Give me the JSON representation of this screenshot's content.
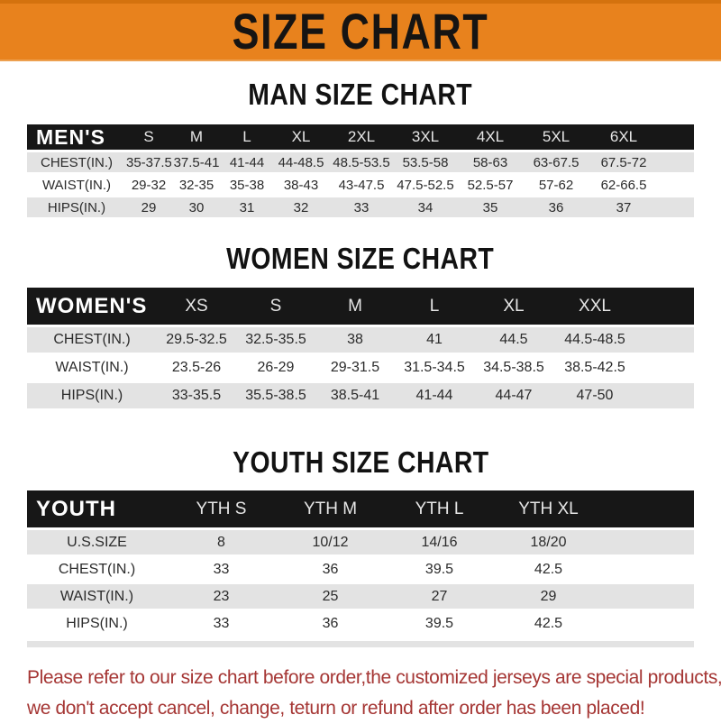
{
  "banner": {
    "title": "SIZE CHART",
    "bg_color": "#E8821D",
    "text_color": "#161413"
  },
  "colors": {
    "header_bar": "#171717",
    "row_stripe": "#E3E3E3",
    "notice_red": "#A53634"
  },
  "sections": [
    {
      "heading": "MAN SIZE CHART",
      "table": {
        "header": [
          "MEN'S",
          "S",
          "M",
          "L",
          "XL",
          "2XL",
          "3XL",
          "4XL",
          "5XL",
          "6XL"
        ],
        "rows": [
          [
            "CHEST(IN.)",
            "35-37.5",
            "37.5-41",
            "41-44",
            "44-48.5",
            "48.5-53.5",
            "53.5-58",
            "58-63",
            "63-67.5",
            "67.5-72"
          ],
          [
            "WAIST(IN.)",
            "29-32",
            "32-35",
            "35-38",
            "38-43",
            "43-47.5",
            "47.5-52.5",
            "52.5-57",
            "57-62",
            "62-66.5"
          ],
          [
            "HIPS(IN.)",
            "29",
            "30",
            "31",
            "32",
            "33",
            "34",
            "35",
            "36",
            "37"
          ]
        ]
      }
    },
    {
      "heading": "WOMEN SIZE CHART",
      "table": {
        "header": [
          "WOMEN'S",
          "XS",
          "S",
          "M",
          "L",
          "XL",
          "XXL"
        ],
        "rows": [
          [
            "CHEST(IN.)",
            "29.5-32.5",
            "32.5-35.5",
            "38",
            "41",
            "44.5",
            "44.5-48.5"
          ],
          [
            "WAIST(IN.)",
            "23.5-26",
            "26-29",
            "29-31.5",
            "31.5-34.5",
            "34.5-38.5",
            "38.5-42.5"
          ],
          [
            "HIPS(IN.)",
            "33-35.5",
            "35.5-38.5",
            "38.5-41",
            "41-44",
            "44-47",
            "47-50"
          ]
        ]
      }
    },
    {
      "heading": "YOUTH SIZE CHART",
      "table": {
        "header": [
          "YOUTH",
          "YTH S",
          "YTH M",
          "YTH L",
          "YTH XL"
        ],
        "rows": [
          [
            "U.S.SIZE",
            "8",
            "10/12",
            "14/16",
            "18/20"
          ],
          [
            "CHEST(IN.)",
            "33",
            "36",
            "39.5",
            "42.5"
          ],
          [
            "WAIST(IN.)",
            "23",
            "25",
            "27",
            "29"
          ],
          [
            "HIPS(IN.)",
            "33",
            "36",
            "39.5",
            "42.5"
          ]
        ]
      }
    }
  ],
  "footer": {
    "line1": "Please refer to our size chart before order,the customized jerseys are special products,",
    "line2": "we don't accept cancel, change, teturn or refund after order has been placed!"
  }
}
